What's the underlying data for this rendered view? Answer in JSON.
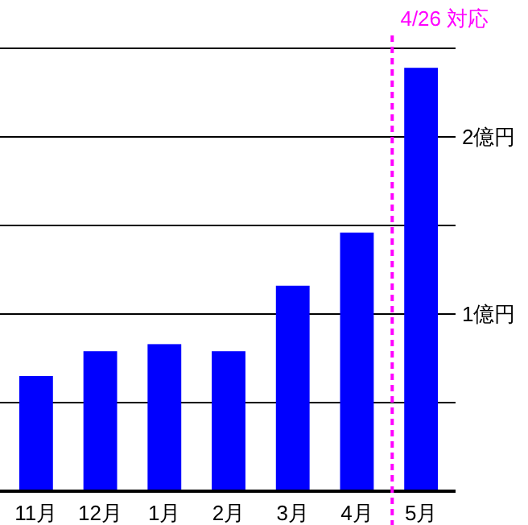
{
  "chart_data": {
    "type": "bar",
    "categories": [
      "11月",
      "12月",
      "1月",
      "2月",
      "3月",
      "4月",
      "5月"
    ],
    "values": [
      0.65,
      0.79,
      0.83,
      0.79,
      1.16,
      1.46,
      2.39
    ],
    "color": "#0000ff",
    "ylim": [
      0,
      2.5
    ],
    "yticks": [
      {
        "value": 0,
        "label": null
      },
      {
        "value": 0.5,
        "label": null
      },
      {
        "value": 1,
        "label": "1億円"
      },
      {
        "value": 1.5,
        "label": null
      },
      {
        "value": 2,
        "label": "2億円"
      },
      {
        "value": 2.5,
        "label": null
      }
    ],
    "grid": "y",
    "ref_lines": [
      {
        "axis": "x",
        "value": "5月",
        "label": "4/26 対応",
        "color": "#ff00ff",
        "line_style": "dashed"
      }
    ]
  }
}
